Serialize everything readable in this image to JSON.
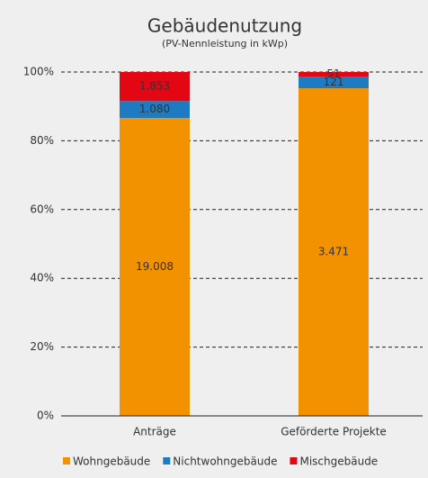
{
  "chart_data": {
    "type": "bar",
    "stacking": "percent",
    "title": "Gebäudenutzung",
    "subtitle": "(PV-Nennleistung in kWp)",
    "categories": [
      "Anträge",
      "Geförderte Projekte"
    ],
    "series": [
      {
        "name": "Wohngebäude",
        "color": "#f39200",
        "values": [
          19008,
          3471
        ],
        "value_labels": [
          "19.008",
          "3.471"
        ]
      },
      {
        "name": "Nichtwohngebäude",
        "color": "#1f7bc1",
        "values": [
          1080,
          121
        ],
        "value_labels": [
          "1.080",
          "121"
        ]
      },
      {
        "name": "Mischgebäude",
        "color": "#e30613",
        "values": [
          1853,
          51
        ],
        "value_labels": [
          "1.853",
          "51"
        ]
      }
    ],
    "ylim": [
      0,
      100
    ],
    "yticks": [
      {
        "value": 0,
        "label": "0%"
      },
      {
        "value": 20,
        "label": "20%"
      },
      {
        "value": 40,
        "label": "40%"
      },
      {
        "value": 60,
        "label": "60%"
      },
      {
        "value": 80,
        "label": "80%"
      },
      {
        "value": 100,
        "label": "100%"
      }
    ],
    "grid": true,
    "legend": "bottom"
  }
}
